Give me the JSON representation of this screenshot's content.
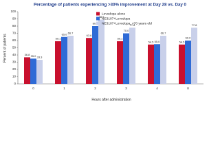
{
  "chart_data": {
    "type": "bar",
    "title": "Percentage of patients experiencing >30% improvement at Day 28 vs. Day 0",
    "x_label": "Hours after administration",
    "y_label": "Percent of patients",
    "categories": [
      "0",
      "1",
      "2",
      "3",
      "4",
      "8"
    ],
    "series": [
      {
        "name": "Levodopa alone",
        "color": "#c8102e",
        "values": [
          36.8,
          59.1,
          63.6,
          59.1,
          54.5,
          54.5
        ],
        "value_labels": [
          "36.8",
          "59.1",
          "63.6",
          "59.1",
          "54.5",
          "54.5"
        ]
      },
      {
        "name": "NE3107+Levodopa",
        "color": "#2f6bd6",
        "values": [
          35.0,
          65.0,
          80.0,
          70.0,
          55.0,
          60.0
        ],
        "value_labels": [
          "35.0",
          "65.0",
          "80.0",
          "70.0",
          "55.0",
          "60.0"
        ]
      },
      {
        "name": "NE3107+Levodopa, <70 years old",
        "color": "#c9d0ea",
        "values": [
          33.3,
          66.7,
          88.9,
          77.8,
          66.7,
          77.8
        ],
        "value_labels": [
          "33.3",
          "66.7",
          "88.9",
          "77.8",
          "66.7",
          "77.8"
        ]
      }
    ],
    "ylim": [
      0,
      100
    ],
    "yticks": [
      0,
      10,
      20,
      30,
      40,
      50,
      60,
      70,
      80,
      90,
      100
    ],
    "legend": "top-center"
  }
}
